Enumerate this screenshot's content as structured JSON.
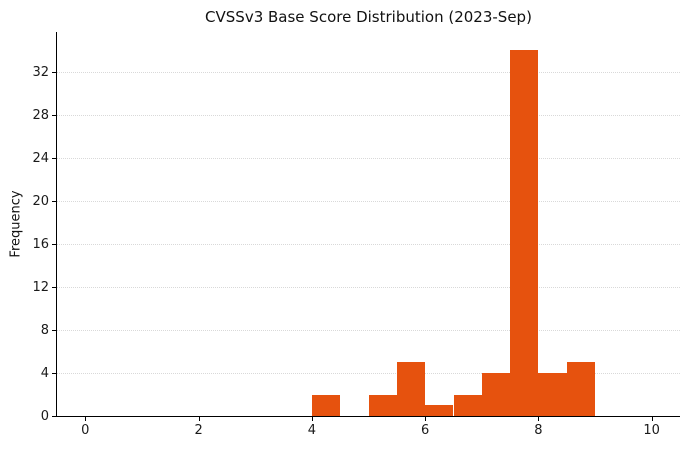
{
  "figure": {
    "background": "#ffffff",
    "text_color": "#1a1a1a"
  },
  "chart_data": {
    "type": "bar",
    "subtype": "histogram",
    "title": "CVSSv3 Base Score Distribution (2023-Sep)",
    "xlabel": "",
    "ylabel": "Frequency",
    "bin_edges": [
      4.0,
      4.5,
      5.0,
      5.5,
      6.0,
      6.5,
      7.0,
      7.5,
      8.0,
      8.5,
      9.0
    ],
    "values": [
      2,
      0,
      2,
      5,
      1,
      2,
      4,
      34,
      4,
      5
    ],
    "xlim": [
      -0.5,
      10.5
    ],
    "ylim": [
      0,
      35.7
    ],
    "x_ticks": [
      0,
      2,
      4,
      6,
      8,
      10
    ],
    "y_ticks": [
      0,
      4,
      8,
      12,
      16,
      20,
      24,
      28,
      32
    ],
    "bar_color": "#e6520e",
    "grid": {
      "axis": "y",
      "style": "dotted",
      "color": "#d9d9d9"
    },
    "legend_position": "none"
  }
}
